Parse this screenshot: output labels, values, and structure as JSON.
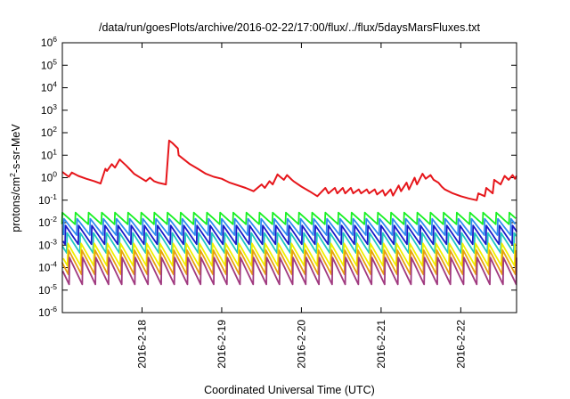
{
  "chart_data": {
    "type": "line",
    "title": "/data/run/goesPlots/archive/2016-02-22/17:00/flux/../flux/5daysMarsFluxes.txt",
    "xlabel": "Coordinated Universal Time (UTC)",
    "ylabel": {
      "pre": "protons/cm",
      "sup": "2",
      "post": "-s-sr-MeV"
    },
    "yscale": "log",
    "ylim": [
      1e-06,
      1000000.0
    ],
    "xlim": [
      0,
      5.7
    ],
    "grid": false,
    "legend": "none",
    "y_ticks": [
      {
        "value": 1e-06,
        "base": "10",
        "exp": "-6"
      },
      {
        "value": 1e-05,
        "base": "10",
        "exp": "-5"
      },
      {
        "value": 0.0001,
        "base": "10",
        "exp": "-4"
      },
      {
        "value": 0.001,
        "base": "10",
        "exp": "-3"
      },
      {
        "value": 0.01,
        "base": "10",
        "exp": "-2"
      },
      {
        "value": 0.1,
        "base": "10",
        "exp": "-1"
      },
      {
        "value": 1,
        "base": "10",
        "exp": "0"
      },
      {
        "value": 10.0,
        "base": "10",
        "exp": "1"
      },
      {
        "value": 100.0,
        "base": "10",
        "exp": "2"
      },
      {
        "value": 1000.0,
        "base": "10",
        "exp": "3"
      },
      {
        "value": 10000.0,
        "base": "10",
        "exp": "4"
      },
      {
        "value": 100000.0,
        "base": "10",
        "exp": "5"
      },
      {
        "value": 1000000.0,
        "base": "10",
        "exp": "6"
      }
    ],
    "x_ticks": [
      {
        "x": 1,
        "label": "2016-2-18"
      },
      {
        "x": 2,
        "label": "2016-2-19"
      },
      {
        "x": 3,
        "label": "2016-2-20"
      },
      {
        "x": 4,
        "label": "2016-2-21"
      },
      {
        "x": 5,
        "label": "2016-2-22"
      }
    ],
    "series": [
      {
        "color": "#e6161b",
        "x": [
          0.0,
          0.08,
          0.12,
          0.2,
          0.3,
          0.4,
          0.48,
          0.54,
          0.56,
          0.62,
          0.66,
          0.72,
          0.74,
          0.8,
          0.84,
          0.9,
          1.0,
          1.05,
          1.1,
          1.15,
          1.2,
          1.3,
          1.34,
          1.38,
          1.45,
          1.46,
          1.6,
          1.7,
          1.8,
          1.9,
          2.0,
          2.1,
          2.3,
          2.4,
          2.5,
          2.54,
          2.6,
          2.64,
          2.7,
          2.72,
          2.78,
          2.82,
          2.88,
          2.9,
          3.0,
          3.1,
          3.2,
          3.3,
          3.34,
          3.42,
          3.45,
          3.52,
          3.55,
          3.62,
          3.65,
          3.72,
          3.75,
          3.82,
          3.85,
          3.92,
          3.95,
          4.02,
          4.05,
          4.12,
          4.15,
          4.22,
          4.25,
          4.32,
          4.35,
          4.42,
          4.45,
          4.52,
          4.56,
          4.62,
          4.66,
          4.72,
          4.76,
          4.8,
          4.9,
          5.0,
          5.1,
          5.2,
          5.22,
          5.3,
          5.32,
          5.4,
          5.42,
          5.5,
          5.55,
          5.6,
          5.65,
          5.68,
          5.7
        ],
        "y": [
          1.8,
          1.1,
          1.7,
          1.2,
          0.9,
          0.7,
          0.55,
          2.5,
          2.0,
          4.0,
          2.8,
          6.5,
          5.5,
          3.5,
          2.5,
          1.5,
          0.9,
          0.7,
          1.0,
          0.7,
          0.6,
          0.5,
          45,
          35,
          20,
          10,
          4.0,
          2.5,
          1.5,
          1.1,
          0.9,
          0.6,
          0.35,
          0.25,
          0.5,
          0.35,
          0.7,
          0.5,
          1.4,
          1.2,
          0.8,
          1.3,
          0.8,
          0.7,
          0.4,
          0.25,
          0.15,
          0.35,
          0.2,
          0.35,
          0.2,
          0.35,
          0.2,
          0.35,
          0.2,
          0.3,
          0.2,
          0.3,
          0.2,
          0.3,
          0.18,
          0.28,
          0.16,
          0.3,
          0.16,
          0.45,
          0.25,
          0.6,
          0.3,
          1.0,
          0.5,
          1.5,
          0.9,
          1.3,
          0.8,
          0.6,
          0.4,
          0.3,
          0.2,
          0.15,
          0.12,
          0.1,
          0.2,
          0.15,
          0.35,
          0.2,
          0.8,
          0.5,
          1.2,
          0.8,
          1.3,
          0.9,
          1.2
        ]
      },
      {
        "color": "#19f024",
        "sawtooth": {
          "period": 0.165,
          "phase": 0.0,
          "low": 0.0085,
          "high": 0.028
        }
      },
      {
        "color": "#2f8cf0",
        "sawtooth": {
          "period": 0.165,
          "phase": 0.02,
          "low": 0.0028,
          "high": 0.015
        }
      },
      {
        "color": "#1a1ac8",
        "sawtooth": {
          "period": 0.165,
          "phase": 0.04,
          "low": 0.0011,
          "high": 0.0075
        }
      },
      {
        "color": "#1fc8c0",
        "sawtooth": {
          "period": 0.165,
          "phase": 0.06,
          "low": 0.00045,
          "high": 0.0035
        }
      },
      {
        "color": "#f0f000",
        "sawtooth": {
          "period": 0.165,
          "phase": 0.07,
          "low": 0.00012,
          "high": 0.0012
        }
      },
      {
        "color": "#e8a010",
        "sawtooth": {
          "period": 0.165,
          "phase": 0.08,
          "low": 5e-05,
          "high": 0.0006
        }
      },
      {
        "color": "#a03a80",
        "sawtooth": {
          "period": 0.165,
          "phase": 0.09,
          "low": 1.8e-05,
          "high": 0.00028
        }
      }
    ]
  }
}
